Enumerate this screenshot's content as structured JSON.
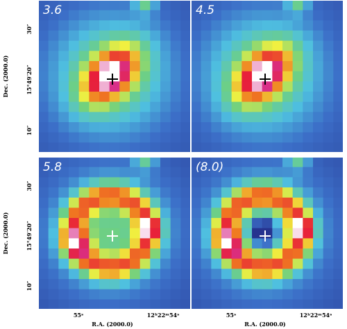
{
  "panels": [
    {
      "label": "3.6"
    },
    {
      "label": "4.5"
    },
    {
      "label": "5.8"
    },
    {
      "label": "(8.0)"
    }
  ],
  "y_axis": {
    "label": "Dec. (2000.0)",
    "ticks": [
      "30″",
      "15°49′20″",
      "10″"
    ]
  },
  "x_axis": {
    "label": "R.A. (2000.0)",
    "ticks": [
      "55ˢ",
      "12ʰ22ᵐ54ˢ"
    ]
  }
}
